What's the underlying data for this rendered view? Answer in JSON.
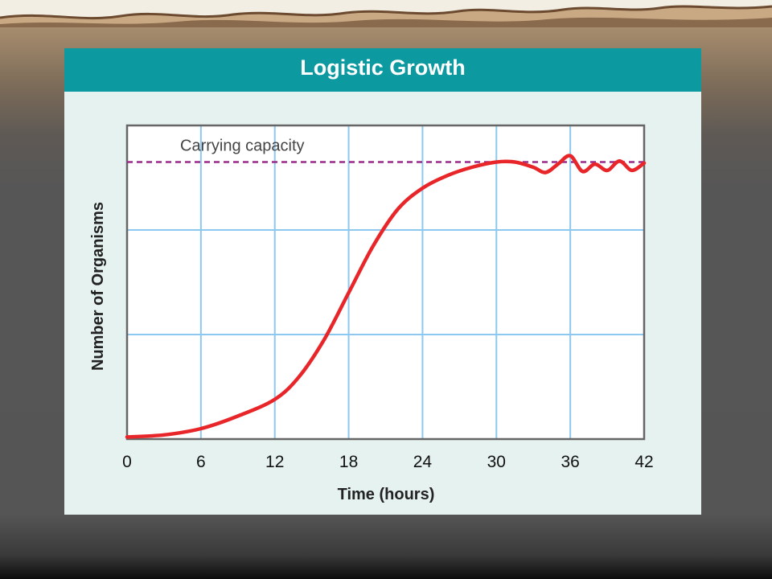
{
  "slide": {
    "colors": {
      "title_bar": "#0c9aa0",
      "panel_bg": "#e6f2ef",
      "gridline": "#8cc8f0",
      "curve": "#e8262a",
      "capacity_line": "#9a2a8a"
    }
  },
  "chart_data": {
    "type": "line",
    "title": "Logistic Growth",
    "xlabel": "Time (hours)",
    "ylabel": "Number of Organisms",
    "xlim": [
      0,
      42
    ],
    "ylim": [
      0,
      3
    ],
    "x_ticks": [
      0,
      6,
      12,
      18,
      24,
      30,
      36,
      42
    ],
    "x_tick_labels": [
      "0",
      "6",
      "12",
      "18",
      "24",
      "30",
      "36",
      "42"
    ],
    "y_tick_labels": [],
    "y_gridlines": [
      1,
      2
    ],
    "grid": true,
    "annotations": [
      {
        "text": "Carrying capacity",
        "type": "horizontal-dashed-line",
        "y": 2.65
      }
    ],
    "series": [
      {
        "points": [
          [
            0,
            0.02
          ],
          [
            3,
            0.04
          ],
          [
            6,
            0.1
          ],
          [
            9,
            0.22
          ],
          [
            12,
            0.38
          ],
          [
            14,
            0.6
          ],
          [
            16,
            0.95
          ],
          [
            18,
            1.4
          ],
          [
            20,
            1.85
          ],
          [
            22,
            2.2
          ],
          [
            24,
            2.4
          ],
          [
            26,
            2.52
          ],
          [
            28,
            2.6
          ],
          [
            30,
            2.65
          ],
          [
            31.5,
            2.65
          ],
          [
            33,
            2.6
          ],
          [
            34,
            2.55
          ],
          [
            35,
            2.63
          ],
          [
            36,
            2.71
          ],
          [
            37,
            2.56
          ],
          [
            38,
            2.63
          ],
          [
            39,
            2.57
          ],
          [
            40,
            2.66
          ],
          [
            41,
            2.57
          ],
          [
            42,
            2.64
          ]
        ]
      }
    ]
  }
}
